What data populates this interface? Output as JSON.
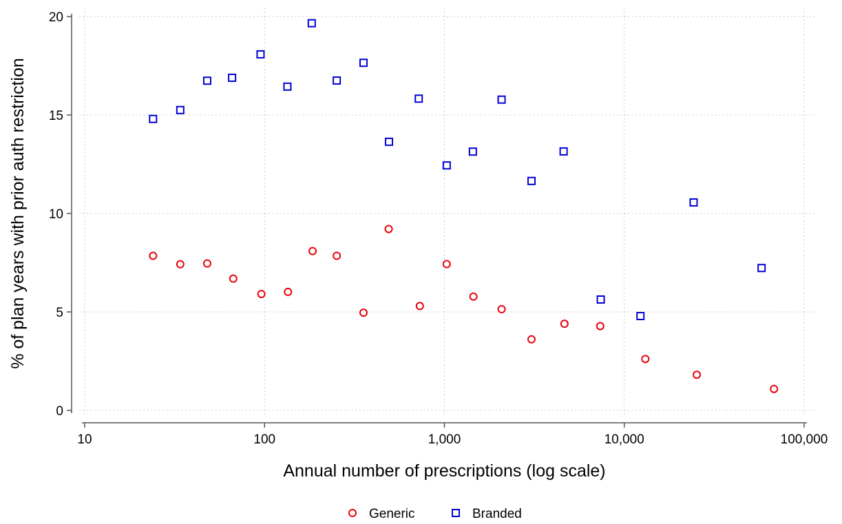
{
  "chart_data": {
    "type": "scatter",
    "title": "",
    "xlabel": "Annual number of prescriptions (log scale)",
    "ylabel": "% of plan years with prior auth restriction",
    "x_scale": "log",
    "xlim": [
      10,
      100000
    ],
    "ylim": [
      0,
      20
    ],
    "x_ticks": [
      10,
      100,
      1000,
      10000,
      100000
    ],
    "x_tick_labels": [
      "10",
      "100",
      "1,000",
      "10,000",
      "100,000"
    ],
    "y_ticks": [
      0,
      5,
      10,
      15,
      20
    ],
    "y_tick_labels": [
      "0",
      "5",
      "10",
      "15",
      "20"
    ],
    "grid": true,
    "legend_position": "bottom-center",
    "series": [
      {
        "name": "Generic",
        "marker": "circle",
        "color": "#e8000b",
        "points": [
          {
            "x": 24,
            "y": 7.85
          },
          {
            "x": 34,
            "y": 7.42
          },
          {
            "x": 48,
            "y": 7.46
          },
          {
            "x": 67,
            "y": 6.69
          },
          {
            "x": 96,
            "y": 5.91
          },
          {
            "x": 135,
            "y": 6.02
          },
          {
            "x": 185,
            "y": 8.09
          },
          {
            "x": 252,
            "y": 7.85
          },
          {
            "x": 355,
            "y": 4.96
          },
          {
            "x": 490,
            "y": 9.21
          },
          {
            "x": 730,
            "y": 5.3
          },
          {
            "x": 1030,
            "y": 7.43
          },
          {
            "x": 1450,
            "y": 5.78
          },
          {
            "x": 2080,
            "y": 5.14
          },
          {
            "x": 3050,
            "y": 3.61
          },
          {
            "x": 4650,
            "y": 4.4
          },
          {
            "x": 7350,
            "y": 4.28
          },
          {
            "x": 13100,
            "y": 2.61
          },
          {
            "x": 25300,
            "y": 1.81
          },
          {
            "x": 68000,
            "y": 1.09
          }
        ]
      },
      {
        "name": "Branded",
        "marker": "square",
        "color": "#0000d6",
        "points": [
          {
            "x": 24,
            "y": 14.8
          },
          {
            "x": 34,
            "y": 15.25
          },
          {
            "x": 48,
            "y": 16.74
          },
          {
            "x": 66,
            "y": 16.89
          },
          {
            "x": 95,
            "y": 18.08
          },
          {
            "x": 134,
            "y": 16.44
          },
          {
            "x": 183,
            "y": 19.66
          },
          {
            "x": 252,
            "y": 16.75
          },
          {
            "x": 355,
            "y": 17.65
          },
          {
            "x": 492,
            "y": 13.64
          },
          {
            "x": 720,
            "y": 15.83
          },
          {
            "x": 1030,
            "y": 12.44
          },
          {
            "x": 1440,
            "y": 13.14
          },
          {
            "x": 2080,
            "y": 15.78
          },
          {
            "x": 3050,
            "y": 11.65
          },
          {
            "x": 4600,
            "y": 13.15
          },
          {
            "x": 7400,
            "y": 5.63
          },
          {
            "x": 12300,
            "y": 4.79
          },
          {
            "x": 24300,
            "y": 10.56
          },
          {
            "x": 58000,
            "y": 7.23
          }
        ]
      }
    ]
  }
}
